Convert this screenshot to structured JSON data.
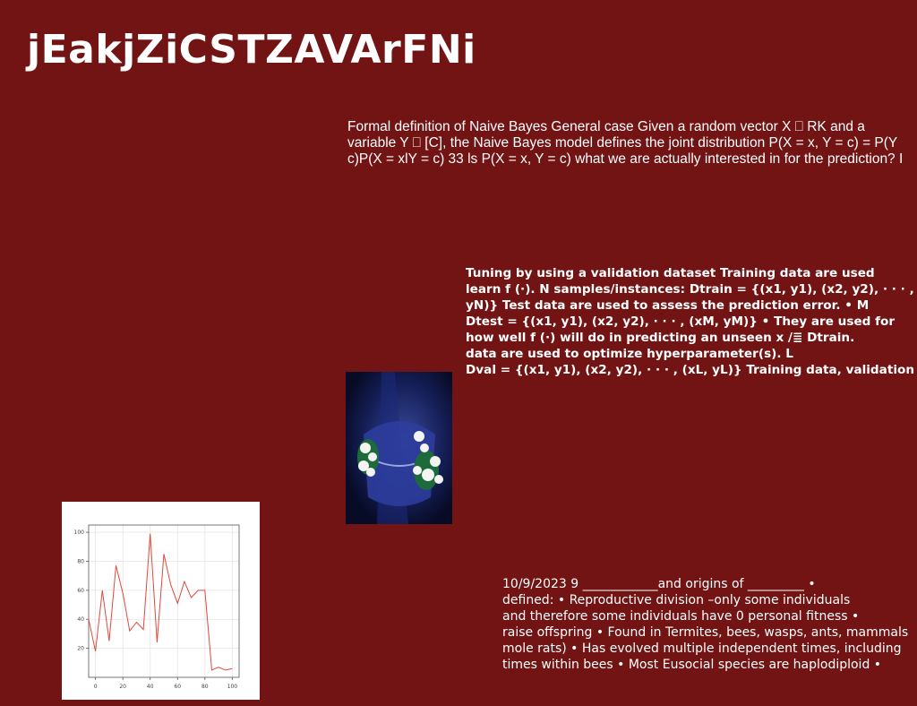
{
  "slide": {
    "title": "jEakjZiCSTZAVArFNi",
    "block1": [
      "Formal definition of Naive Bayes General case Given a random vector X ⎕ RK and a",
      "variable Y ⎕ [C], the Naive Bayes model defines the joint distribution P(X = x, Y = c) = P(Y",
      "c)P(X = xlY = c) 33 ls P(X = x, Y = c) what we are actually interested in for the prediction? I"
    ],
    "block2": [
      "Tuning by using a validation dataset Training data are used",
      "learn f (·). N samples/instances: Dtrain = {(x1, y1), (x2, y2), · · · ,",
      "yN)} Test data are used to assess the prediction error. • M",
      "Dtest = {(x1, y1), (x2, y2), · · · , (xM, yM)} • They are used for",
      "how well f (·) will do in predicting an unseen x /≣ Dtrain.",
      "data are used to optimize hyperparameter(s). L",
      "Dval = {(x1, y1), (x2, y2), · · · , (xL, yL)} Training data, validation"
    ],
    "block3": [
      "10/9/2023 9 ____________and origins of _________ •",
      "defined: • Reproductive division –only some individuals",
      "and therefore some individuals have 0 personal fitness •",
      "raise offspring • Found in Termites, bees, wasps, ants, mammals",
      "mole rats) • Has evolved multiple independent times, including",
      "times within bees • Most Eusocial species are haplodiploid •"
    ]
  },
  "colors": {
    "background": "#721414",
    "text": "#ffffff",
    "line": "#e0483a"
  },
  "chart_data": {
    "type": "line",
    "title": "",
    "xlabel": "",
    "ylabel": "",
    "xlim": [
      -5,
      105
    ],
    "ylim": [
      0,
      105
    ],
    "xticks": [
      "0",
      "20",
      "40",
      "60",
      "80",
      "100"
    ],
    "yticks": [
      "20",
      "40",
      "60",
      "80",
      "100"
    ],
    "grid": true,
    "series": [
      {
        "x": [
          -5,
          0,
          5,
          10,
          15,
          20,
          25,
          30,
          35,
          40,
          45,
          50,
          55,
          60,
          65,
          70,
          75,
          80,
          85,
          90,
          95,
          100
        ],
        "y": [
          40,
          18,
          60,
          25,
          77,
          58,
          32,
          38,
          33,
          99,
          24,
          85,
          64,
          51,
          66,
          55,
          60,
          60,
          5,
          7,
          5,
          6
        ],
        "color": "#e0483a"
      }
    ]
  }
}
